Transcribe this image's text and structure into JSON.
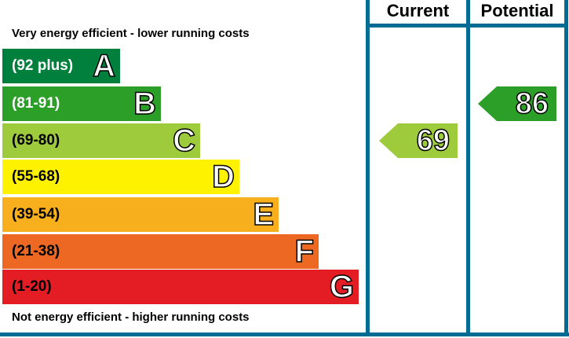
{
  "chart_data": {
    "type": "bar",
    "header": {
      "current": "Current",
      "potential": "Potential"
    },
    "top_note": "Very energy efficient - lower running costs",
    "bottom_note": "Not energy efficient - higher running costs",
    "bands": [
      {
        "letter": "A",
        "range": "(92 plus)",
        "color": "#007f3d",
        "text_color": "#ffffff"
      },
      {
        "letter": "B",
        "range": "(81-91)",
        "color": "#2c9f29",
        "text_color": "#ffffff"
      },
      {
        "letter": "C",
        "range": "(69-80)",
        "color": "#9dcb3c",
        "text_color": "#000000"
      },
      {
        "letter": "D",
        "range": "(55-68)",
        "color": "#fff200",
        "text_color": "#000000"
      },
      {
        "letter": "E",
        "range": "(39-54)",
        "color": "#f7af1d",
        "text_color": "#000000"
      },
      {
        "letter": "F",
        "range": "(21-38)",
        "color": "#ed6823",
        "text_color": "#000000"
      },
      {
        "letter": "G",
        "range": "(1-20)",
        "color": "#e31d23",
        "text_color": "#000000"
      }
    ],
    "current": {
      "value": "69",
      "band": "C"
    },
    "potential": {
      "value": "86",
      "band": "B"
    },
    "frame_color": "#006c93"
  }
}
